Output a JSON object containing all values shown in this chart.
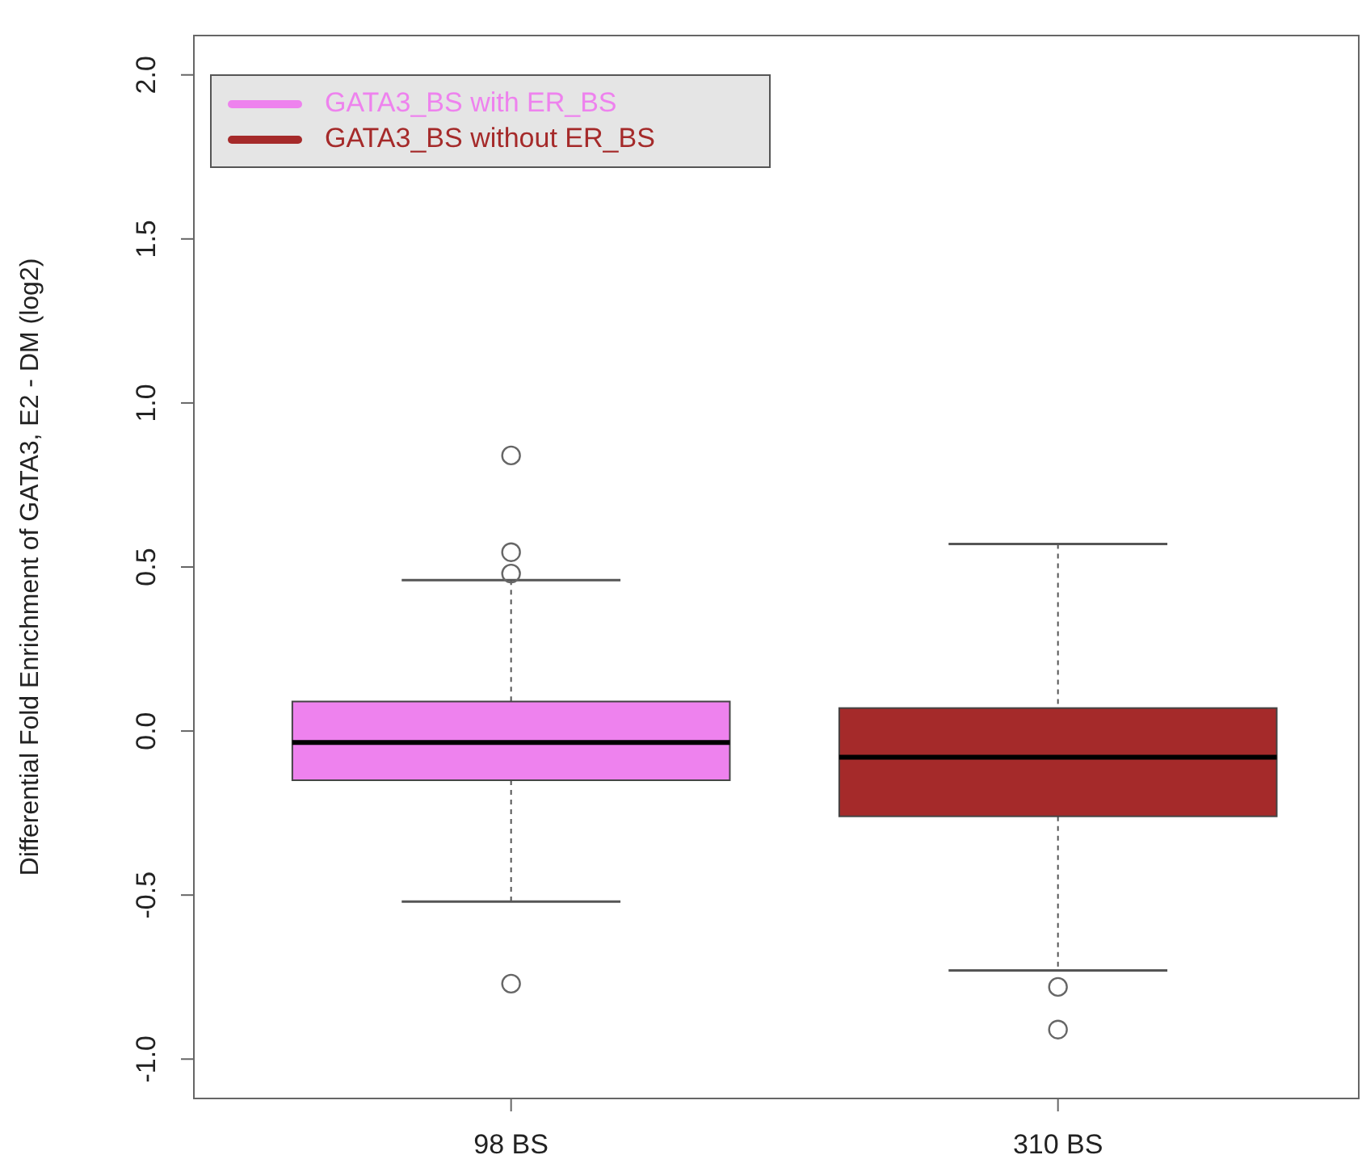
{
  "chart_data": {
    "type": "box",
    "ylabel": "Differential Fold Enrichment of GATA3, E2 - DM (log2)",
    "categories": [
      "98 BS",
      "310 BS"
    ],
    "series": [
      {
        "name": "GATA3_BS with ER_BS",
        "color": "#ee82ee",
        "boxes": [
          {
            "low": -0.52,
            "q1": -0.15,
            "median": -0.035,
            "q3": 0.09,
            "high": 0.46,
            "outliers": [
              0.84,
              0.545,
              0.48,
              -0.77
            ]
          },
          null
        ]
      },
      {
        "name": "GATA3_BS without ER_BS",
        "color": "#a52a2a",
        "boxes": [
          null,
          {
            "low": -0.73,
            "q1": -0.26,
            "median": -0.08,
            "q3": 0.07,
            "high": 0.57,
            "outliers": [
              -0.78,
              -0.91
            ]
          }
        ]
      }
    ],
    "ylim": [
      -1.12,
      2.12
    ],
    "yticks": [
      {
        "value": -1,
        "label": "-1.0"
      },
      -0.5,
      {
        "value": 0,
        "label": "0.0"
      },
      0.5,
      {
        "value": 1,
        "label": "1.0"
      },
      1.5,
      {
        "value": 2,
        "label": "2.0"
      }
    ],
    "legend": "top left"
  }
}
